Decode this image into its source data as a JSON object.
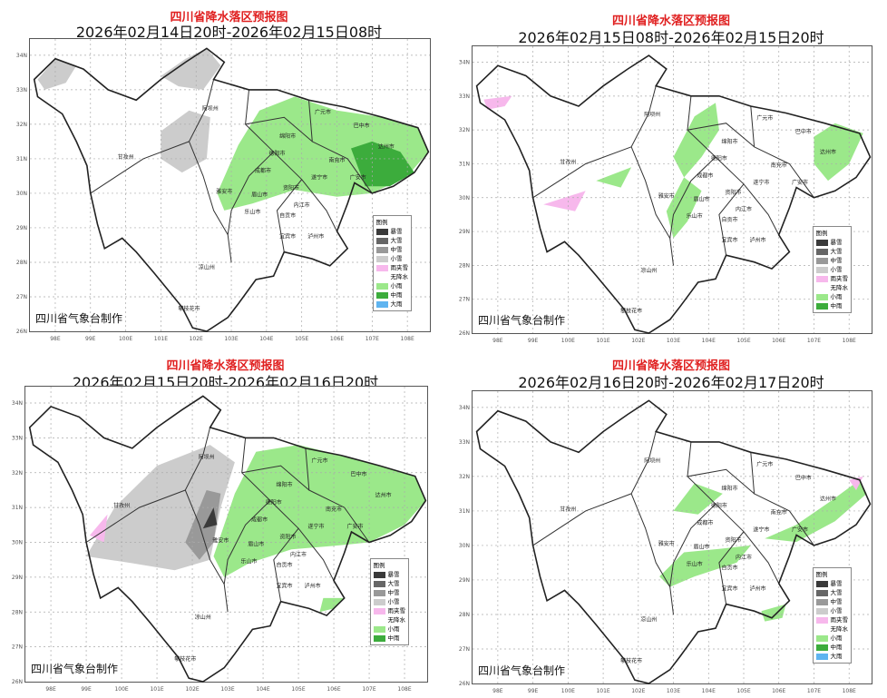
{
  "title": "四川省降水落区预报图",
  "footer": "四川省气象台制作",
  "legend_title": "图例",
  "legend_items": [
    {
      "label": "暴雪",
      "color": "#3a3a3a"
    },
    {
      "label": "大雪",
      "color": "#666666"
    },
    {
      "label": "中雪",
      "color": "#999999"
    },
    {
      "label": "小雪",
      "color": "#cccccc"
    },
    {
      "label": "雨夹雪",
      "color": "#f7b8ec"
    },
    {
      "label": "无降水",
      "color": "#ffffff"
    },
    {
      "label": "小雨",
      "color": "#9be88a"
    },
    {
      "label": "中雨",
      "color": "#3cac3c"
    },
    {
      "label": "大雨",
      "color": "#5fb4f0"
    }
  ],
  "lon_ticks": [
    "98E",
    "99E",
    "100E",
    "101E",
    "102E",
    "103E",
    "104E",
    "105E",
    "106E",
    "107E",
    "108E"
  ],
  "lat_ticks": [
    "26N",
    "27N",
    "28N",
    "29N",
    "30N",
    "31N",
    "32N",
    "33N",
    "34N"
  ],
  "cities": [
    "阿坝州",
    "甘孜州",
    "凉山州",
    "攀枝花市",
    "雅安市",
    "乐山市",
    "眉山市",
    "成都市",
    "德阳市",
    "绵阳市",
    "广元市",
    "巴中市",
    "达州市",
    "南充市",
    "遂宁市",
    "资阳市",
    "内江市",
    "自贡市",
    "宜宾市",
    "泸州市",
    "广安市"
  ],
  "panels": [
    {
      "subtitle": "2026年02月14日20时-2026年02月15日08时",
      "legend_count": 9
    },
    {
      "subtitle": "2026年02月15日08时-2026年02月15日20时",
      "legend_count": 8
    },
    {
      "subtitle": "2026年02月15日20时-2026年02月16日20时",
      "legend_count": 8
    },
    {
      "subtitle": "2026年02月16日20时-2026年02月17日20时",
      "legend_count": 9
    }
  ]
}
